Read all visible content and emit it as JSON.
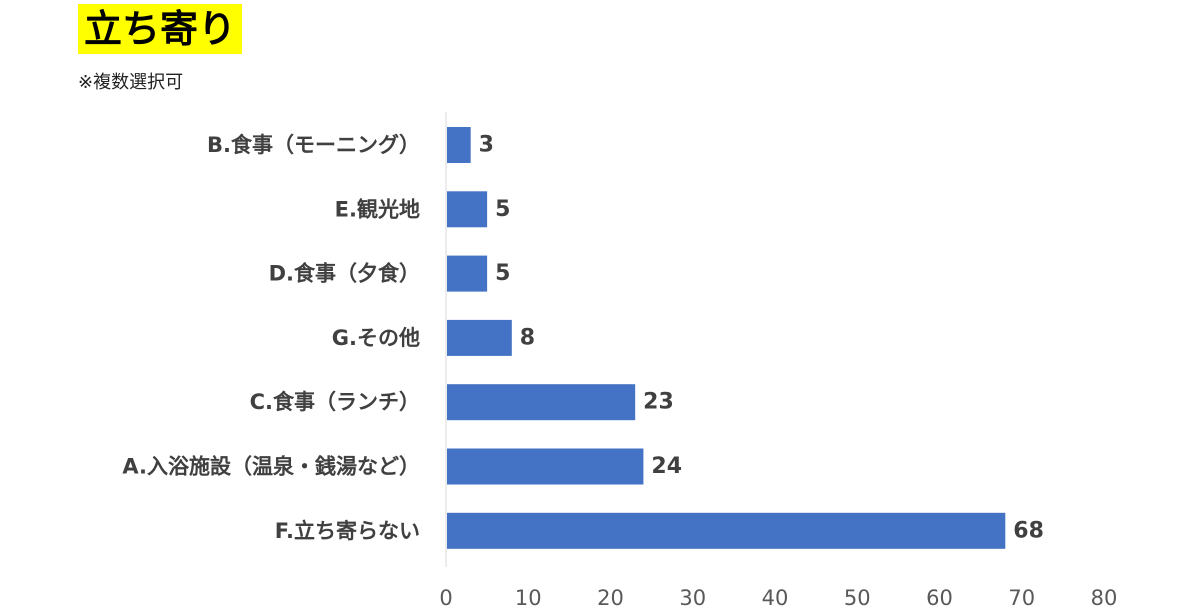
{
  "title": "立ち寄り",
  "subtitle": "※複数選択可",
  "colors": {
    "bar": "#4472c4",
    "title_highlight": "#ffff00",
    "axis_line": "#d9d9d9"
  },
  "chart_data": {
    "type": "bar",
    "orientation": "horizontal",
    "categories": [
      "B.食事（モーニング）",
      "E.観光地",
      "D.食事（夕食）",
      "G.その他",
      "C.食事（ランチ）",
      "A.入浴施設（温泉・銭湯など）",
      "F.立ち寄らない"
    ],
    "values": [
      3,
      5,
      5,
      8,
      23,
      24,
      68
    ],
    "xlim": [
      0,
      80
    ],
    "xticks": [
      0,
      10,
      20,
      30,
      40,
      50,
      60,
      70,
      80
    ],
    "grid": false,
    "data_labels": true
  }
}
